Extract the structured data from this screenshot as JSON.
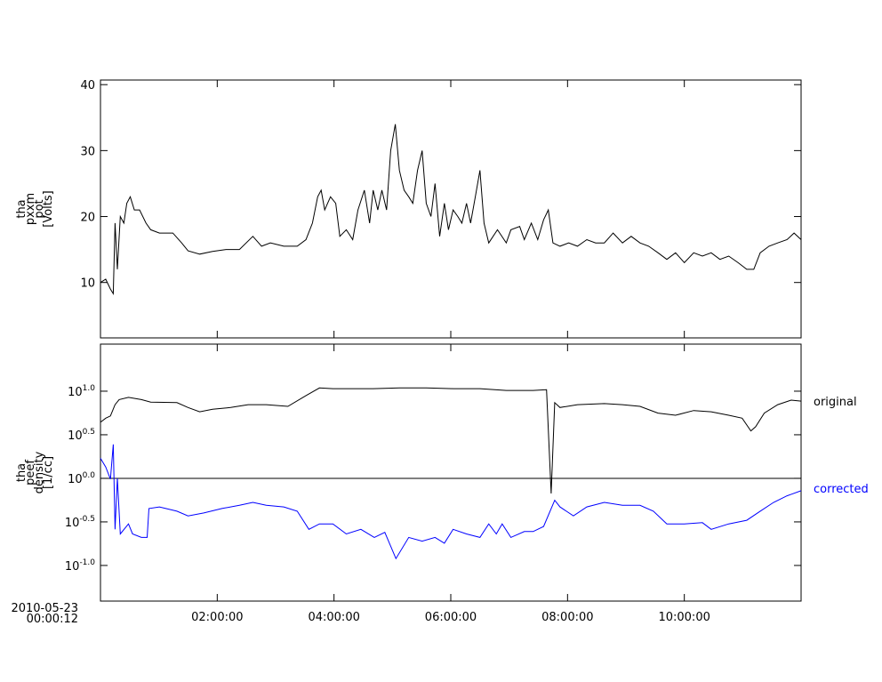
{
  "chart_data": [
    {
      "type": "line",
      "ylabel": [
        "tha",
        "pxxm",
        "pot",
        "[Volts]"
      ],
      "ylim": [
        1.6,
        40.7
      ],
      "yticks": [
        10,
        20,
        30,
        40
      ],
      "xlim": [
        0,
        12
      ],
      "xticks": [
        2,
        4,
        6,
        8,
        10
      ],
      "series": [
        {
          "color": "#000000",
          "x": [
            0,
            0.09,
            0.17,
            0.22,
            0.25,
            0.29,
            0.34,
            0.4,
            0.45,
            0.51,
            0.58,
            0.67,
            0.78,
            0.86,
            1.01,
            1.24,
            1.39,
            1.5,
            1.7,
            1.92,
            2.15,
            2.38,
            2.61,
            2.76,
            2.91,
            3.14,
            3.37,
            3.52,
            3.63,
            3.72,
            3.78,
            3.84,
            3.94,
            4.03,
            4.1,
            4.21,
            4.32,
            4.41,
            4.52,
            4.61,
            4.67,
            4.75,
            4.82,
            4.9,
            4.97,
            5.05,
            5.12,
            5.2,
            5.28,
            5.35,
            5.43,
            5.51,
            5.58,
            5.66,
            5.73,
            5.81,
            5.89,
            5.96,
            6.04,
            6.12,
            6.19,
            6.27,
            6.34,
            6.42,
            6.5,
            6.57,
            6.65,
            6.8,
            6.95,
            7.03,
            7.18,
            7.26,
            7.38,
            7.49,
            7.59,
            7.67,
            7.75,
            7.87,
            8.02,
            8.17,
            8.33,
            8.48,
            8.63,
            8.78,
            8.94,
            9.09,
            9.24,
            9.39,
            9.55,
            9.7,
            9.85,
            10.0,
            10.16,
            10.31,
            10.46,
            10.61,
            10.76,
            10.92,
            11.07,
            11.19,
            11.3,
            11.45,
            11.6,
            11.76,
            11.88,
            12.0
          ],
          "values": [
            10,
            10.5,
            9,
            8.3,
            19,
            12,
            20,
            19,
            22,
            23,
            21,
            21,
            19,
            18,
            17.5,
            17.5,
            16,
            14.8,
            14.3,
            14.7,
            15,
            15,
            17,
            15.5,
            16,
            15.5,
            15.5,
            16.5,
            19,
            23,
            24,
            21,
            23,
            22,
            17,
            18,
            16.5,
            21,
            24,
            19,
            24,
            21,
            24,
            21,
            30,
            34,
            27,
            24,
            23,
            22,
            27,
            30,
            22,
            20,
            25,
            17,
            22,
            18,
            21,
            20,
            19,
            22,
            19,
            23,
            27,
            19,
            16,
            18,
            16,
            18,
            18.5,
            16.5,
            19,
            16.5,
            19.5,
            21,
            16,
            15.5,
            16,
            15.5,
            16.5,
            16,
            16,
            17.5,
            16,
            17,
            16,
            15.5,
            14.5,
            13.5,
            14.5,
            13,
            14.5,
            14,
            14.5,
            13.5,
            14,
            13,
            12,
            12,
            14.5,
            15.5,
            16,
            16.5,
            17.5,
            16.5
          ]
        }
      ]
    },
    {
      "type": "line",
      "ylabel": [
        "tha",
        "peef",
        "density",
        "[1/cc]"
      ],
      "log_y": true,
      "ylim": [
        0.039,
        34.7
      ],
      "yticks": [
        {
          "value": 10,
          "label": "10^1.0"
        },
        {
          "value": 3.162,
          "label": "10^0.5"
        },
        {
          "value": 1,
          "label": "10^0.0"
        },
        {
          "value": 0.3162,
          "label": "10^-0.5"
        },
        {
          "value": 0.1,
          "label": "10^-1.0"
        }
      ],
      "hline": 1,
      "xlim": [
        0,
        12
      ],
      "xticks": [
        {
          "value": 2,
          "label": "02:00:00"
        },
        {
          "value": 4,
          "label": "04:00:00"
        },
        {
          "value": 6,
          "label": "06:00:00"
        },
        {
          "value": 8,
          "label": "08:00:00"
        },
        {
          "value": 10,
          "label": "10:00:00"
        }
      ],
      "x_start_label": [
        "2010-05-23",
        "00:00:12"
      ],
      "series": [
        {
          "name": "original",
          "color": "#000000",
          "x": [
            0,
            0.09,
            0.17,
            0.25,
            0.32,
            0.48,
            0.7,
            0.86,
            1.31,
            1.5,
            1.7,
            1.92,
            2.23,
            2.53,
            2.84,
            3.21,
            3.52,
            3.75,
            3.98,
            4.21,
            4.67,
            5.12,
            5.58,
            6.04,
            6.5,
            6.95,
            7.41,
            7.64,
            7.72,
            7.78,
            7.87,
            8.17,
            8.63,
            8.94,
            9.24,
            9.55,
            9.85,
            10.16,
            10.46,
            10.76,
            10.99,
            11.14,
            11.22,
            11.37,
            11.6,
            11.83,
            12.0
          ],
          "values": [
            4.4,
            4.9,
            5.2,
            7.0,
            8.0,
            8.5,
            8.0,
            7.5,
            7.4,
            6.5,
            5.8,
            6.2,
            6.5,
            7.0,
            7.0,
            6.7,
            8.9,
            10.9,
            10.7,
            10.7,
            10.7,
            10.9,
            10.9,
            10.7,
            10.7,
            10.2,
            10.2,
            10.4,
            0.67,
            7.4,
            6.5,
            7.0,
            7.2,
            7.0,
            6.7,
            5.6,
            5.3,
            6.0,
            5.8,
            5.3,
            4.9,
            3.5,
            3.9,
            5.6,
            7.0,
            7.9,
            7.7
          ]
        },
        {
          "name": "corrected",
          "color": "#0000ff",
          "x": [
            0,
            0.09,
            0.17,
            0.22,
            0.25,
            0.29,
            0.34,
            0.48,
            0.55,
            0.7,
            0.8,
            0.83,
            1.01,
            1.31,
            1.5,
            1.77,
            2.08,
            2.38,
            2.61,
            2.84,
            3.14,
            3.37,
            3.57,
            3.75,
            3.98,
            4.21,
            4.46,
            4.69,
            4.87,
            5.06,
            5.28,
            5.51,
            5.73,
            5.89,
            6.04,
            6.27,
            6.5,
            6.65,
            6.78,
            6.88,
            7.03,
            7.26,
            7.41,
            7.59,
            7.78,
            7.87,
            8.1,
            8.33,
            8.63,
            8.94,
            9.24,
            9.47,
            9.7,
            10.0,
            10.31,
            10.46,
            10.76,
            11.07,
            11.3,
            11.53,
            11.76,
            12.0
          ],
          "values": [
            1.7,
            1.35,
            0.98,
            2.45,
            0.26,
            1.0,
            0.23,
            0.3,
            0.23,
            0.21,
            0.21,
            0.45,
            0.47,
            0.42,
            0.37,
            0.4,
            0.45,
            0.49,
            0.53,
            0.49,
            0.47,
            0.42,
            0.26,
            0.3,
            0.3,
            0.23,
            0.26,
            0.21,
            0.24,
            0.12,
            0.21,
            0.19,
            0.21,
            0.18,
            0.26,
            0.23,
            0.21,
            0.3,
            0.23,
            0.3,
            0.21,
            0.245,
            0.245,
            0.28,
            0.56,
            0.47,
            0.37,
            0.47,
            0.53,
            0.49,
            0.49,
            0.42,
            0.3,
            0.3,
            0.31,
            0.26,
            0.3,
            0.33,
            0.42,
            0.53,
            0.63,
            0.72
          ]
        }
      ]
    }
  ]
}
